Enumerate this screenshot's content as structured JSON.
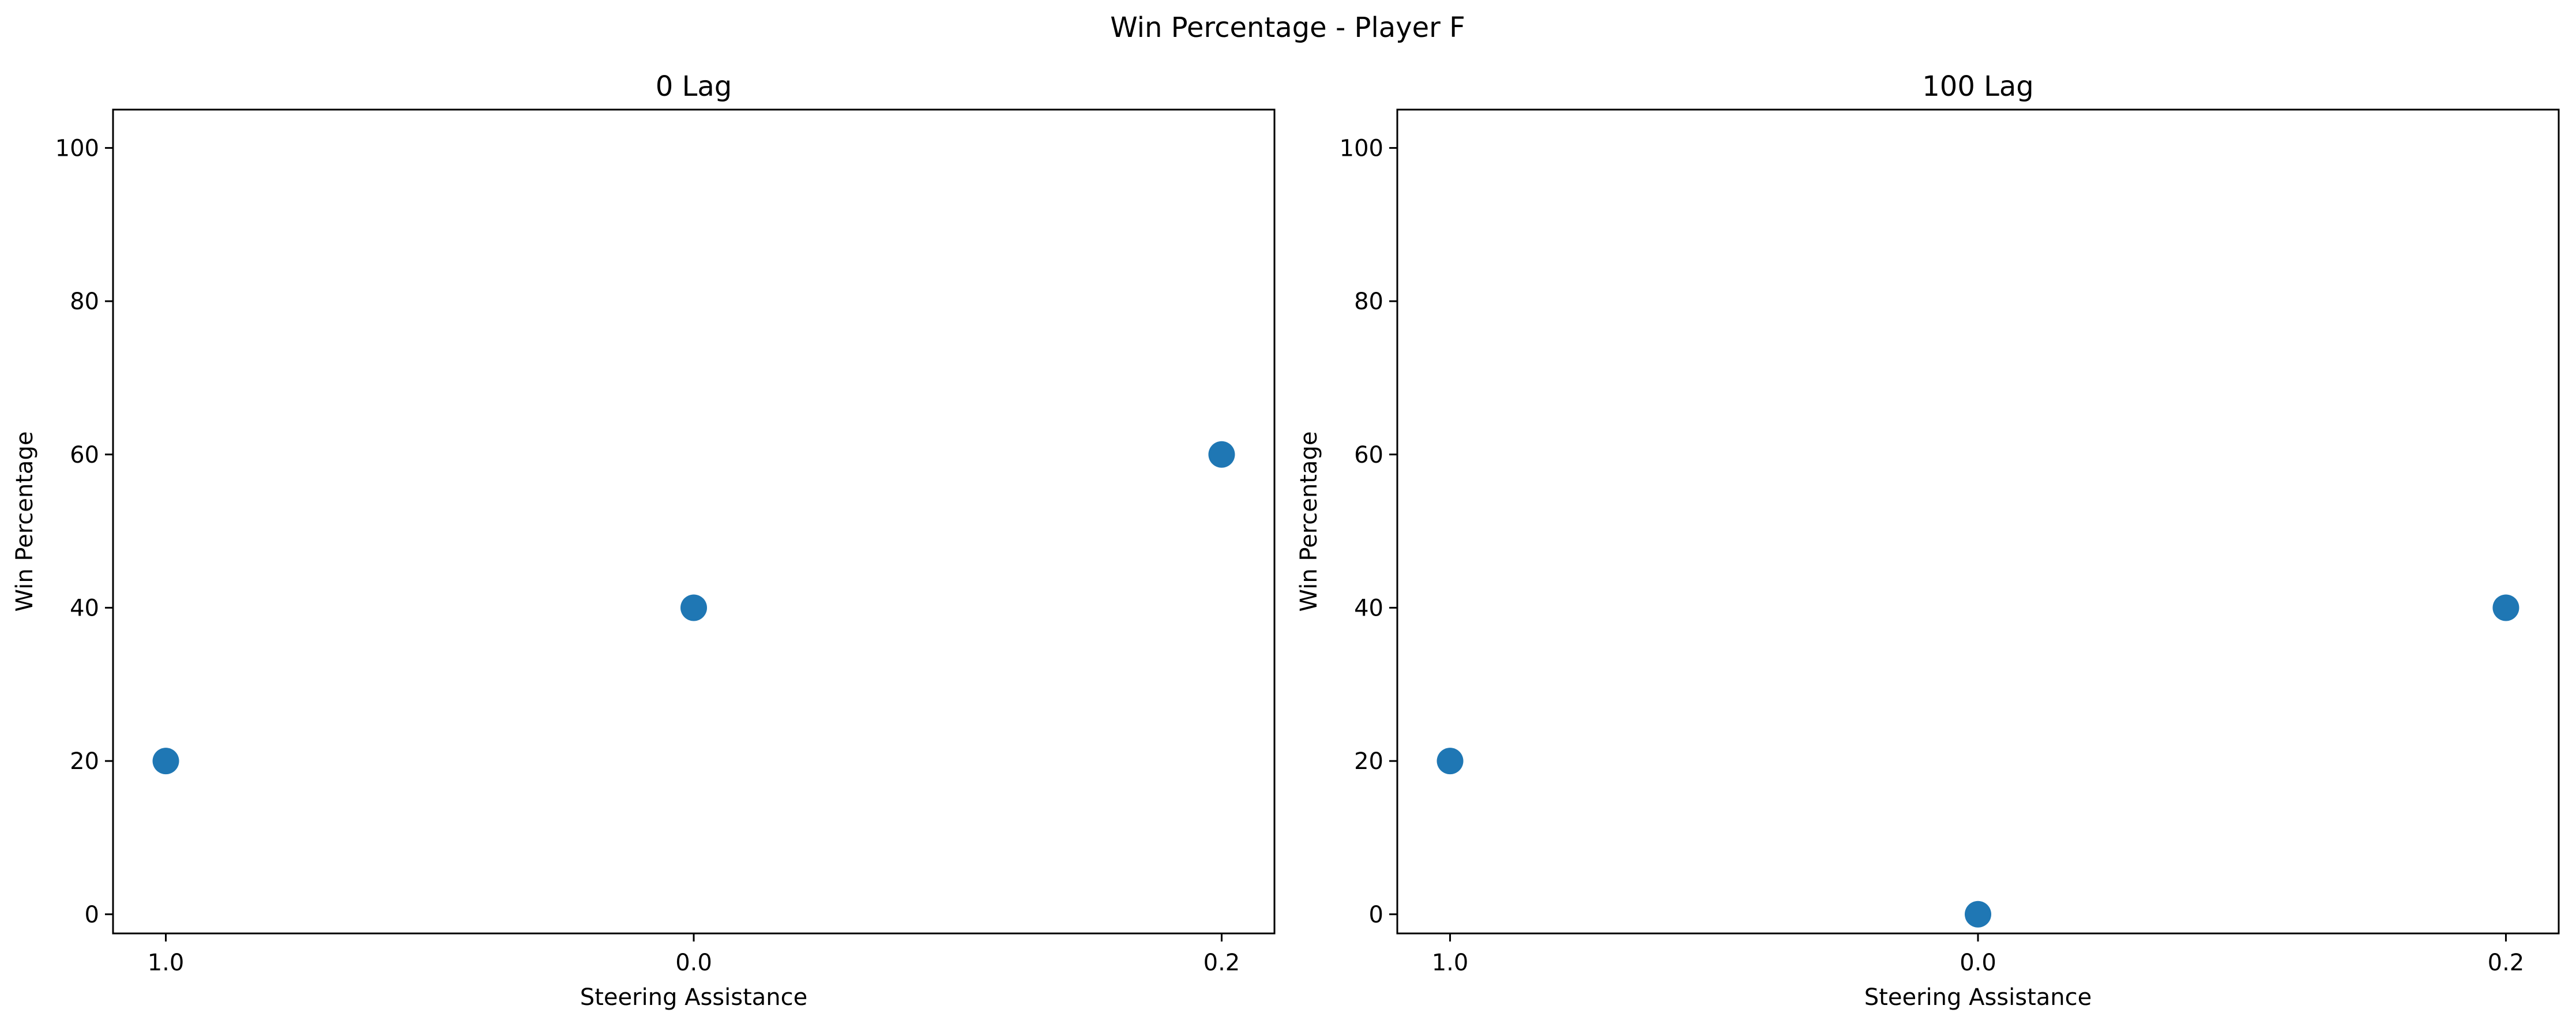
{
  "figure": {
    "suptitle": "Win Percentage - Player F"
  },
  "chart_data": [
    {
      "type": "scatter",
      "title": "0 Lag",
      "xlabel": "Steering Assistance",
      "ylabel": "Win Percentage",
      "categories": [
        "1.0",
        "0.0",
        "0.2"
      ],
      "values": [
        20,
        40,
        60
      ],
      "ylim": [
        -2.5,
        105
      ],
      "yticks": [
        0,
        20,
        40,
        60,
        80,
        100
      ],
      "color": "#1f77b4",
      "grid": false
    },
    {
      "type": "scatter",
      "title": "100 Lag",
      "xlabel": "Steering Assistance",
      "ylabel": "Win Percentage",
      "categories": [
        "1.0",
        "0.0",
        "0.2"
      ],
      "values": [
        20,
        0,
        40
      ],
      "ylim": [
        -2.5,
        105
      ],
      "yticks": [
        0,
        20,
        40,
        60,
        80,
        100
      ],
      "color": "#1f77b4",
      "grid": false
    }
  ]
}
